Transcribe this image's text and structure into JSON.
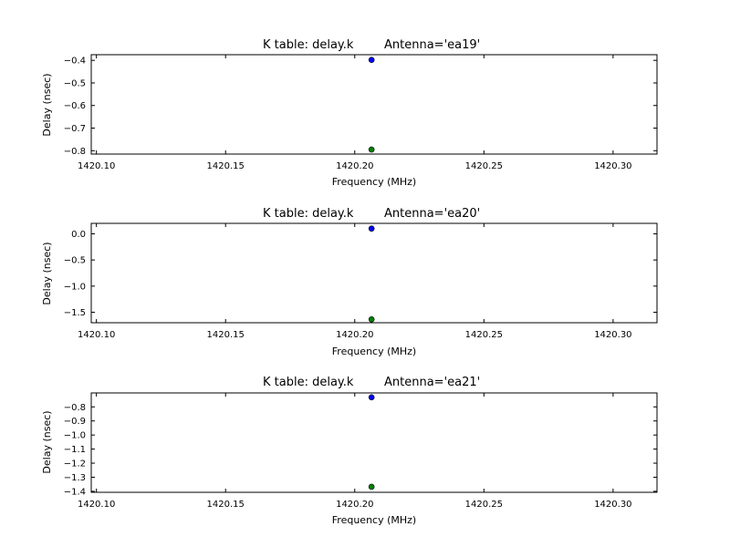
{
  "chart_data": [
    {
      "type": "scatter",
      "title_left": "K table: delay.k",
      "title_right": "Antenna='ea19'",
      "xlabel": "Frequency (MHz)",
      "ylabel": "Delay (nsec)",
      "xlim": [
        1420.098,
        1420.317
      ],
      "ylim": [
        -0.815,
        -0.375
      ],
      "xticks": [
        1420.1,
        1420.15,
        1420.2,
        1420.25,
        1420.3
      ],
      "xtick_labels": [
        "1420.10",
        "1420.15",
        "1420.20",
        "1420.25",
        "1420.30"
      ],
      "yticks": [
        -0.4,
        -0.5,
        -0.6,
        -0.7,
        -0.8
      ],
      "ytick_labels": [
        "−0.4",
        "−0.5",
        "−0.6",
        "−0.7",
        "−0.8"
      ],
      "series": [
        {
          "color": "#0000ff",
          "points": [
            [
              1420.2065,
              -0.398
            ]
          ]
        },
        {
          "color": "#008000",
          "points": [
            [
              1420.2065,
              -0.795
            ]
          ]
        }
      ]
    },
    {
      "type": "scatter",
      "title_left": "K table: delay.k",
      "title_right": "Antenna='ea20'",
      "xlabel": "Frequency (MHz)",
      "ylabel": "Delay (nsec)",
      "xlim": [
        1420.098,
        1420.317
      ],
      "ylim": [
        -1.7,
        0.2
      ],
      "xticks": [
        1420.1,
        1420.15,
        1420.2,
        1420.25,
        1420.3
      ],
      "xtick_labels": [
        "1420.10",
        "1420.15",
        "1420.20",
        "1420.25",
        "1420.30"
      ],
      "yticks": [
        0.0,
        -0.5,
        -1.0,
        -1.5
      ],
      "ytick_labels": [
        "0.0",
        "−0.5",
        "−1.0",
        "−1.5"
      ],
      "series": [
        {
          "color": "#0000ff",
          "points": [
            [
              1420.2065,
              0.1
            ]
          ]
        },
        {
          "color": "#008000",
          "points": [
            [
              1420.2065,
              -1.635
            ]
          ]
        }
      ]
    },
    {
      "type": "scatter",
      "title_left": "K table: delay.k",
      "title_right": "Antenna='ea21'",
      "xlabel": "Frequency (MHz)",
      "ylabel": "Delay (nsec)",
      "xlim": [
        1420.098,
        1420.317
      ],
      "ylim": [
        -1.407,
        -0.701
      ],
      "xticks": [
        1420.1,
        1420.15,
        1420.2,
        1420.25,
        1420.3
      ],
      "xtick_labels": [
        "1420.10",
        "1420.15",
        "1420.20",
        "1420.25",
        "1420.30"
      ],
      "yticks": [
        -0.8,
        -0.9,
        -1.0,
        -1.1,
        -1.2,
        -1.3,
        -1.4
      ],
      "ytick_labels": [
        "−0.8",
        "−0.9",
        "−1.0",
        "−1.1",
        "−1.2",
        "−1.3",
        "−1.4"
      ],
      "series": [
        {
          "color": "#0000ff",
          "points": [
            [
              1420.2065,
              -0.732
            ]
          ]
        },
        {
          "color": "#008000",
          "points": [
            [
              1420.2065,
              -1.368
            ]
          ]
        }
      ]
    }
  ]
}
